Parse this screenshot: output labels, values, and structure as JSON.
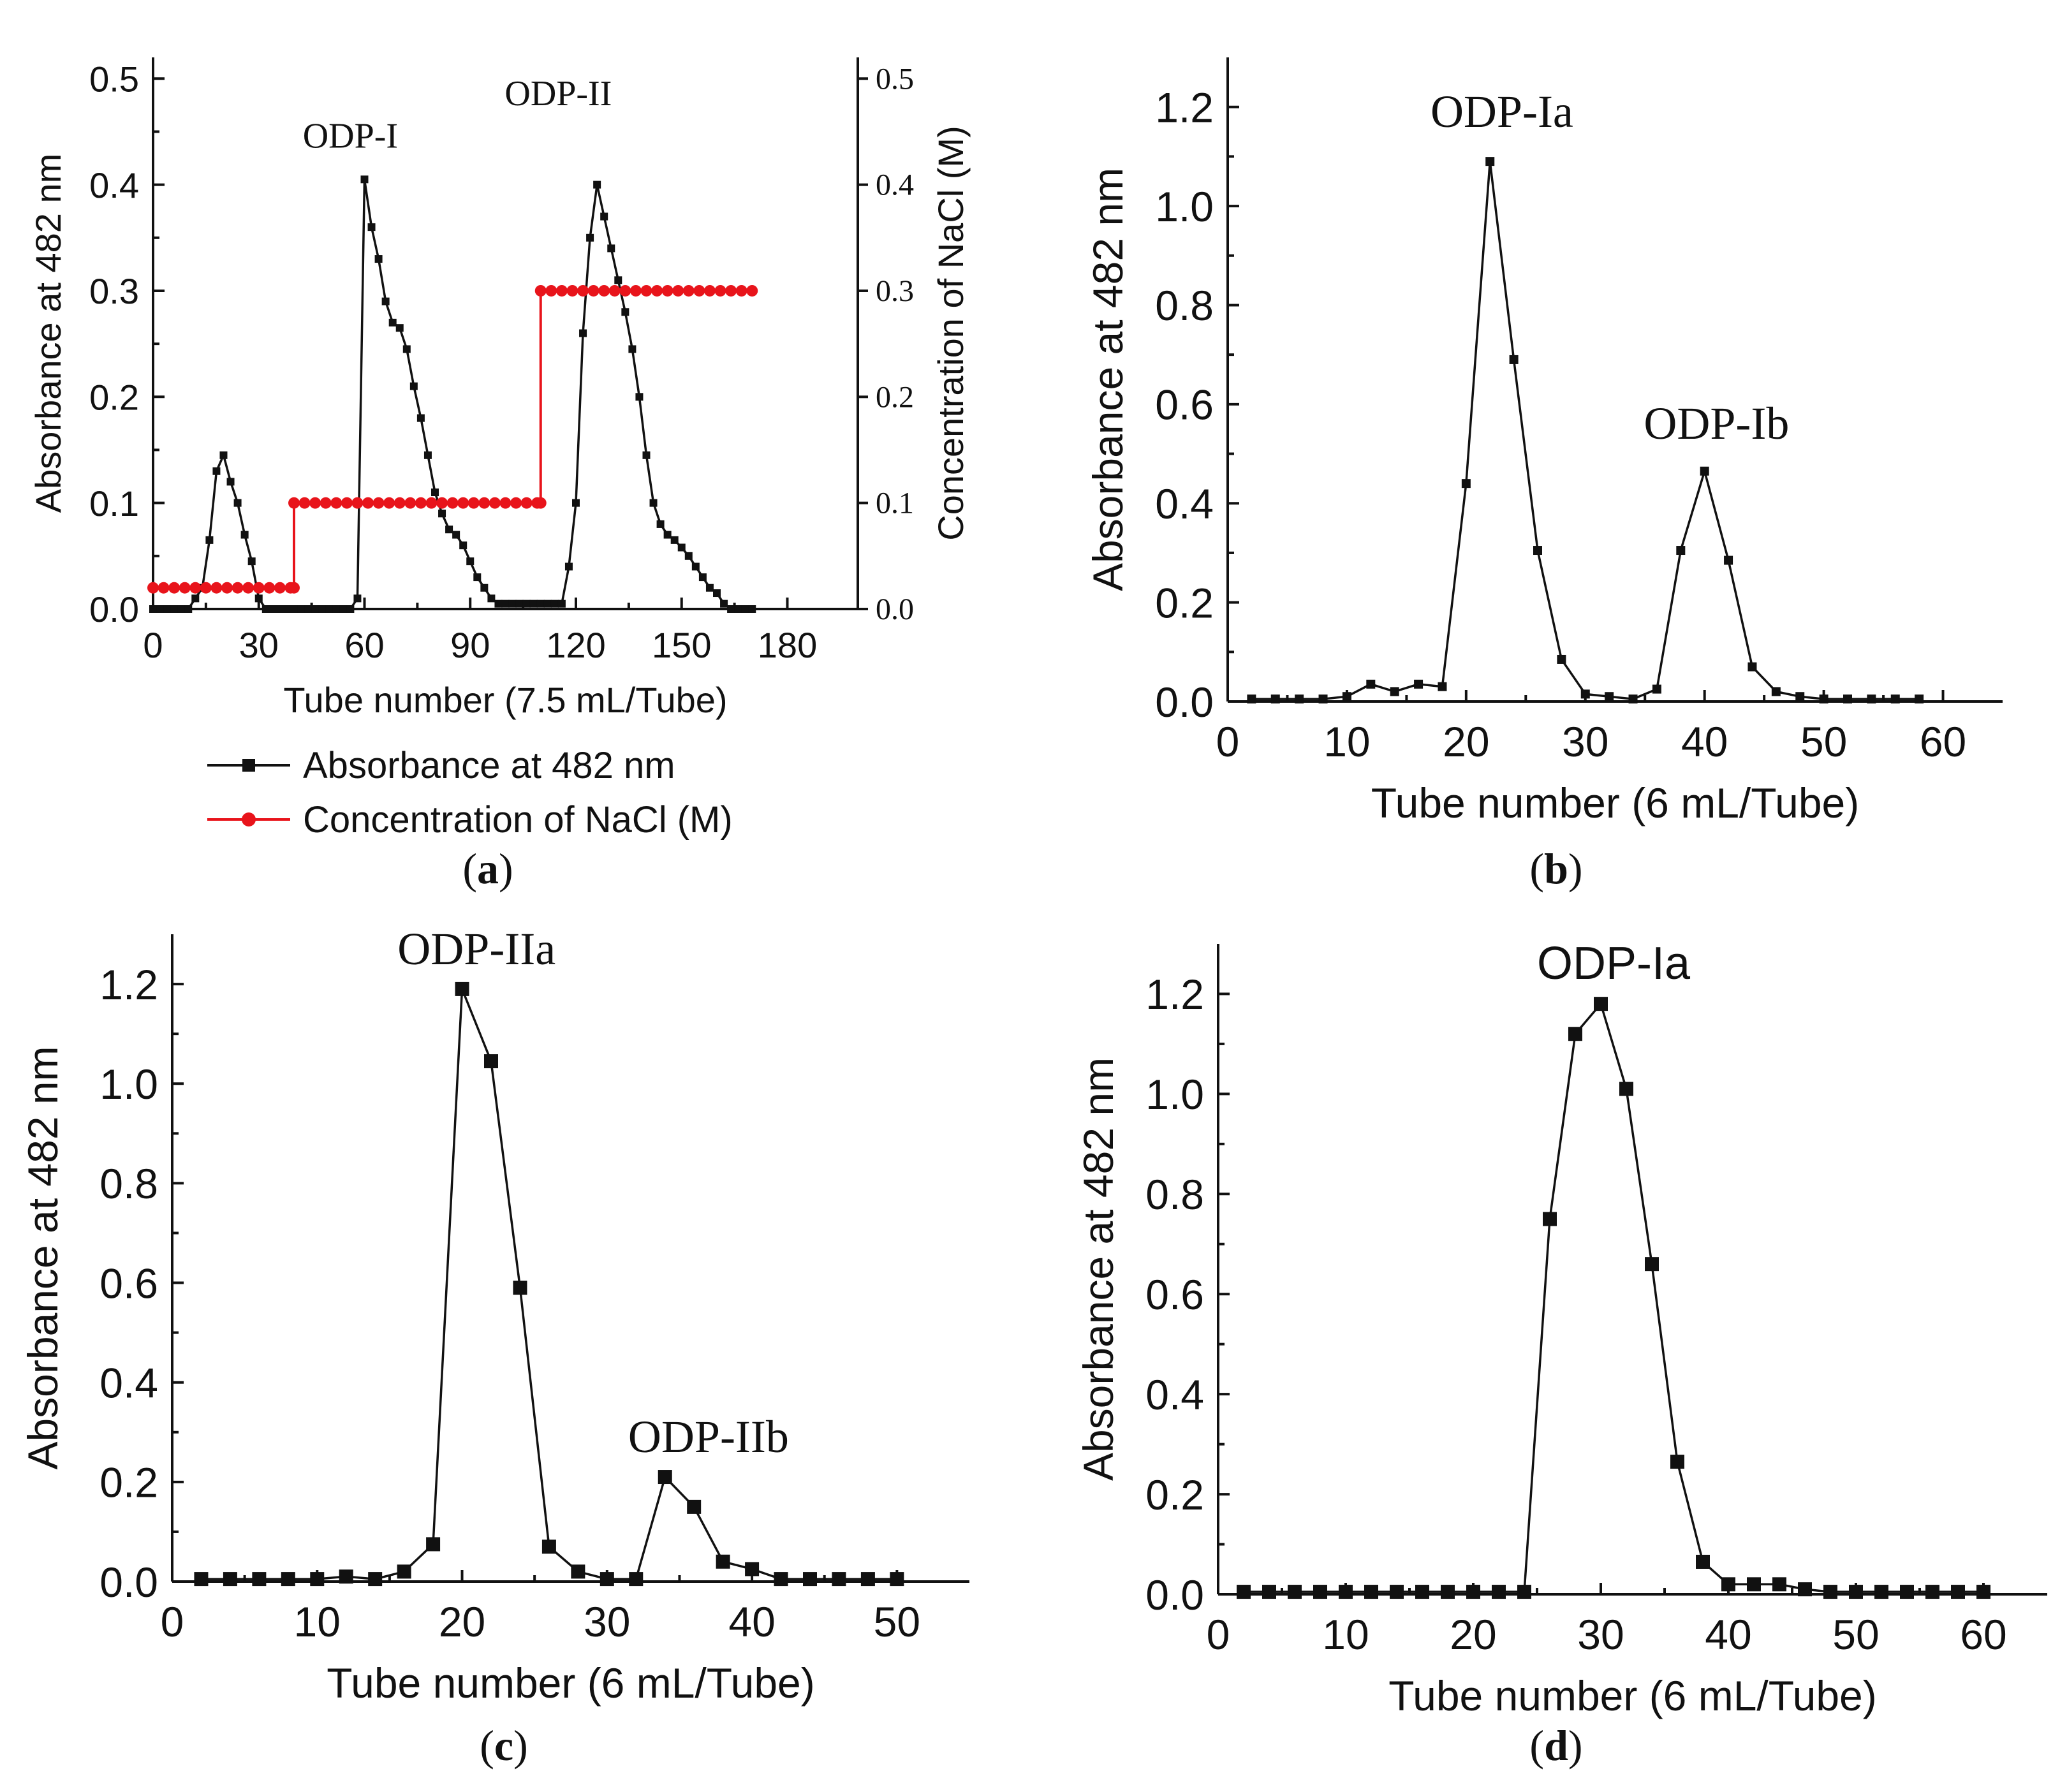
{
  "colors": {
    "absorbance": "#111111",
    "nacl": "#e8141b"
  },
  "chart_data": [
    {
      "panel": "a",
      "type": "line",
      "caption_letter": "a",
      "xlabel": "Tube number (7.5 mL/Tube)",
      "ylabel": "Absorbance at 482 nm",
      "y2label": "Concentration of NaCl (M)",
      "xlim": [
        0,
        200
      ],
      "ylim": [
        0,
        0.52
      ],
      "y2lim": [
        0,
        0.52
      ],
      "xticks": [
        "0",
        "30",
        "60",
        "90",
        "120",
        "150",
        "180"
      ],
      "yticks": [
        "0.0",
        "0.1",
        "0.2",
        "0.3",
        "0.4",
        "0.5"
      ],
      "y2ticks": [
        "0.0",
        "0.1",
        "0.2",
        "0.3",
        "0.4",
        "0.5"
      ],
      "legend": [
        "Absorbance at 482 nm",
        "Concentration of NaCl (M)"
      ],
      "peak_labels": [
        {
          "text": "ODP-I",
          "x": 56,
          "y": 0.435
        },
        {
          "text": "ODP-II",
          "x": 115,
          "y": 0.475
        }
      ],
      "series": [
        {
          "name": "Absorbance at 482 nm",
          "x": [
            0,
            2,
            4,
            6,
            8,
            10,
            12,
            14,
            16,
            18,
            20,
            22,
            24,
            26,
            28,
            30,
            32,
            34,
            36,
            38,
            40,
            42,
            44,
            46,
            48,
            50,
            52,
            54,
            56,
            58,
            60,
            62,
            64,
            66,
            68,
            70,
            72,
            74,
            76,
            78,
            80,
            82,
            84,
            86,
            88,
            90,
            92,
            94,
            96,
            98,
            100,
            102,
            104,
            106,
            108,
            110,
            112,
            114,
            116,
            118,
            120,
            122,
            124,
            126,
            128,
            130,
            132,
            134,
            136,
            138,
            140,
            142,
            144,
            146,
            148,
            150,
            152,
            154,
            156,
            158,
            160,
            162,
            164,
            166,
            168,
            170
          ],
          "values": [
            0.0,
            0.0,
            0.0,
            0.0,
            0.0,
            0.0,
            0.01,
            0.02,
            0.065,
            0.13,
            0.145,
            0.12,
            0.1,
            0.07,
            0.045,
            0.01,
            0.0,
            0.0,
            0.0,
            0.0,
            0.0,
            0.0,
            0.0,
            0.0,
            0.0,
            0.0,
            0.0,
            0.0,
            0.0,
            0.01,
            0.405,
            0.36,
            0.33,
            0.29,
            0.27,
            0.265,
            0.245,
            0.21,
            0.18,
            0.145,
            0.11,
            0.09,
            0.075,
            0.07,
            0.06,
            0.045,
            0.03,
            0.02,
            0.01,
            0.005,
            0.005,
            0.005,
            0.005,
            0.005,
            0.005,
            0.005,
            0.005,
            0.005,
            0.005,
            0.04,
            0.1,
            0.26,
            0.35,
            0.4,
            0.37,
            0.34,
            0.31,
            0.28,
            0.245,
            0.2,
            0.145,
            0.1,
            0.08,
            0.07,
            0.065,
            0.058,
            0.05,
            0.04,
            0.03,
            0.02,
            0.015,
            0.005,
            0.0,
            0.0,
            0.0,
            0.0
          ]
        },
        {
          "name": "Concentration of NaCl (M)",
          "axis": "right",
          "x": [
            0,
            3,
            6,
            9,
            12,
            15,
            18,
            21,
            24,
            27,
            30,
            33,
            36,
            39,
            40,
            40,
            43,
            46,
            49,
            52,
            55,
            58,
            61,
            64,
            67,
            70,
            73,
            76,
            79,
            82,
            85,
            88,
            91,
            94,
            97,
            100,
            103,
            106,
            109,
            110,
            110,
            113,
            116,
            119,
            122,
            125,
            128,
            131,
            134,
            137,
            140,
            143,
            146,
            149,
            152,
            155,
            158,
            161,
            164,
            167,
            170
          ],
          "values": [
            0.02,
            0.02,
            0.02,
            0.02,
            0.02,
            0.02,
            0.02,
            0.02,
            0.02,
            0.02,
            0.02,
            0.02,
            0.02,
            0.02,
            0.02,
            0.1,
            0.1,
            0.1,
            0.1,
            0.1,
            0.1,
            0.1,
            0.1,
            0.1,
            0.1,
            0.1,
            0.1,
            0.1,
            0.1,
            0.1,
            0.1,
            0.1,
            0.1,
            0.1,
            0.1,
            0.1,
            0.1,
            0.1,
            0.1,
            0.1,
            0.3,
            0.3,
            0.3,
            0.3,
            0.3,
            0.3,
            0.3,
            0.3,
            0.3,
            0.3,
            0.3,
            0.3,
            0.3,
            0.3,
            0.3,
            0.3,
            0.3,
            0.3,
            0.3,
            0.3,
            0.3
          ]
        }
      ]
    },
    {
      "panel": "b",
      "type": "line",
      "caption_letter": "b",
      "xlabel": "Tube number (6 mL/Tube)",
      "ylabel": "Absorbance at 482 nm",
      "xlim": [
        0,
        65
      ],
      "ylim": [
        0,
        1.3
      ],
      "xticks": [
        "0",
        "10",
        "20",
        "30",
        "40",
        "50",
        "60"
      ],
      "yticks": [
        "0.0",
        "0.2",
        "0.4",
        "0.6",
        "0.8",
        "1.0",
        "1.2"
      ],
      "peak_labels": [
        {
          "text": "ODP-Ia",
          "x": 23,
          "y": 1.16
        },
        {
          "text": "ODP-Ib",
          "x": 41,
          "y": 0.53
        }
      ],
      "series": [
        {
          "name": "Absorbance at 482 nm",
          "x": [
            2,
            4,
            6,
            8,
            10,
            12,
            14,
            16,
            18,
            20,
            22,
            24,
            26,
            28,
            30,
            32,
            34,
            36,
            38,
            40,
            42,
            44,
            46,
            48,
            50,
            52,
            54,
            56,
            58
          ],
          "values": [
            0.005,
            0.005,
            0.005,
            0.005,
            0.01,
            0.035,
            0.02,
            0.035,
            0.03,
            0.44,
            1.09,
            0.69,
            0.305,
            0.085,
            0.015,
            0.01,
            0.005,
            0.025,
            0.305,
            0.465,
            0.285,
            0.07,
            0.02,
            0.01,
            0.005,
            0.005,
            0.005,
            0.005,
            0.005
          ]
        }
      ]
    },
    {
      "panel": "c",
      "type": "line",
      "caption_letter": "c",
      "xlabel": "Tube number (6 mL/Tube)",
      "ylabel": "Absorbance at 482 nm",
      "xlim": [
        0,
        55
      ],
      "ylim": [
        0,
        1.3
      ],
      "xticks": [
        "0",
        "10",
        "20",
        "30",
        "40",
        "50"
      ],
      "yticks": [
        "0.0",
        "0.2",
        "0.4",
        "0.6",
        "0.8",
        "1.0",
        "1.2"
      ],
      "peak_labels": [
        {
          "text": "ODP-IIa",
          "x": 21,
          "y": 1.24
        },
        {
          "text": "ODP-IIb",
          "x": 37,
          "y": 0.26
        }
      ],
      "series": [
        {
          "name": "Absorbance at 482 nm",
          "x": [
            2,
            4,
            6,
            8,
            10,
            12,
            14,
            16,
            18,
            20,
            22,
            24,
            26,
            28,
            30,
            32,
            34,
            36,
            38,
            40,
            42,
            44,
            46,
            48,
            50
          ],
          "values": [
            0.005,
            0.005,
            0.005,
            0.005,
            0.005,
            0.01,
            0.005,
            0.02,
            0.075,
            1.19,
            1.045,
            0.59,
            0.07,
            0.02,
            0.005,
            0.005,
            0.21,
            0.15,
            0.04,
            0.025,
            0.005,
            0.005,
            0.005,
            0.005,
            0.005
          ]
        }
      ]
    },
    {
      "panel": "d",
      "type": "line",
      "caption_letter": "d",
      "xlabel": "Tube number (6 mL/Tube)",
      "ylabel": "Absorbance at 482 nm",
      "xlim": [
        0,
        65
      ],
      "ylim": [
        0,
        1.3
      ],
      "xticks": [
        "0",
        "10",
        "20",
        "30",
        "40",
        "50",
        "60"
      ],
      "yticks": [
        "0.0",
        "0.2",
        "0.4",
        "0.6",
        "0.8",
        "1.0",
        "1.2"
      ],
      "peak_labels": [
        {
          "text": "ODP-Ia",
          "x": 31,
          "y": 1.23
        }
      ],
      "series": [
        {
          "name": "Absorbance at 482 nm",
          "x": [
            2,
            4,
            6,
            8,
            10,
            12,
            14,
            16,
            18,
            20,
            22,
            24,
            26,
            28,
            30,
            32,
            34,
            36,
            38,
            40,
            42,
            44,
            46,
            48,
            50,
            52,
            54,
            56,
            58,
            60
          ],
          "values": [
            0.005,
            0.005,
            0.005,
            0.005,
            0.005,
            0.005,
            0.005,
            0.005,
            0.005,
            0.005,
            0.005,
            0.005,
            0.75,
            1.12,
            1.18,
            1.01,
            0.66,
            0.265,
            0.065,
            0.02,
            0.02,
            0.02,
            0.01,
            0.005,
            0.005,
            0.005,
            0.005,
            0.005,
            0.005,
            0.005
          ]
        }
      ]
    }
  ]
}
